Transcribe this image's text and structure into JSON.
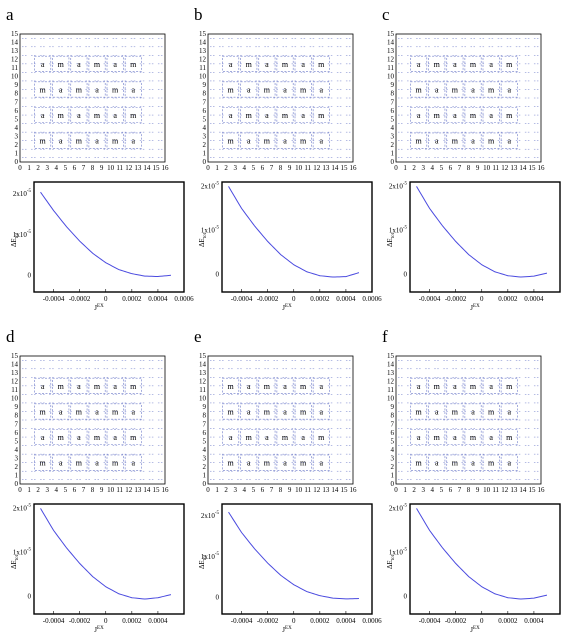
{
  "figure": {
    "panels": [
      {
        "letter": "a",
        "grid_rows": [
          [
            "a",
            "m",
            "a",
            "m",
            "a",
            "m"
          ],
          [
            "m",
            "a",
            "m",
            "a",
            "m",
            "a"
          ],
          [
            "a",
            "m",
            "a",
            "m",
            "a",
            "m"
          ],
          [
            "m",
            "a",
            "m",
            "a",
            "m",
            "a"
          ]
        ],
        "chart_xlabel": "J",
        "chart_xlabel_sup": "EX",
        "chart_ylabel": "ΔE",
        "chart_ylabel_sub": "tot"
      },
      {
        "letter": "b",
        "grid_rows": [
          [
            "a",
            "m",
            "a",
            "m",
            "a",
            "m"
          ],
          [
            "m",
            "a",
            "m",
            "a",
            "m",
            "a"
          ],
          [
            "a",
            "m",
            "a",
            "m",
            "a",
            "m"
          ],
          [
            "m",
            "a",
            "m",
            "a",
            "m",
            "a"
          ]
        ],
        "chart_xlabel": "J",
        "chart_xlabel_sup": "EX",
        "chart_ylabel": "ΔE",
        "chart_ylabel_sub": "tot"
      },
      {
        "letter": "c",
        "grid_rows": [
          [
            "a",
            "m",
            "a",
            "m",
            "a",
            "m"
          ],
          [
            "m",
            "a",
            "m",
            "a",
            "m",
            "a"
          ],
          [
            "a",
            "m",
            "a",
            "m",
            "a",
            "m"
          ],
          [
            "m",
            "a",
            "m",
            "a",
            "m",
            "a"
          ]
        ],
        "chart_xlabel": "J",
        "chart_xlabel_sup": "EX",
        "chart_ylabel": "ΔE",
        "chart_ylabel_sub": "tot"
      },
      {
        "letter": "d",
        "grid_rows": [
          [
            "a",
            "m",
            "a",
            "m",
            "a",
            "m"
          ],
          [
            "m",
            "a",
            "m",
            "a",
            "m",
            "a"
          ],
          [
            "a",
            "m",
            "a",
            "m",
            "a",
            "m"
          ],
          [
            "m",
            "a",
            "m",
            "a",
            "m",
            "a"
          ]
        ],
        "chart_xlabel": "J",
        "chart_xlabel_sup": "EX",
        "chart_ylabel": "ΔE",
        "chart_ylabel_sub": "tot"
      },
      {
        "letter": "e",
        "grid_rows": [
          [
            "m",
            "a",
            "m",
            "a",
            "m",
            "a"
          ],
          [
            "m",
            "a",
            "m",
            "a",
            "m",
            "a"
          ],
          [
            "a",
            "m",
            "a",
            "m",
            "a",
            "m"
          ],
          [
            "m",
            "a",
            "m",
            "a",
            "m",
            "a"
          ]
        ],
        "chart_xlabel": "J",
        "chart_xlabel_sup": "EX",
        "chart_ylabel": "ΔE",
        "chart_ylabel_sub": "tot"
      },
      {
        "letter": "f",
        "grid_rows": [
          [
            "a",
            "m",
            "a",
            "m",
            "a",
            "m"
          ],
          [
            "m",
            "a",
            "m",
            "a",
            "m",
            "a"
          ],
          [
            "a",
            "m",
            "a",
            "m",
            "a",
            "m"
          ],
          [
            "m",
            "a",
            "m",
            "a",
            "m",
            "a"
          ]
        ],
        "chart_xlabel": "J",
        "chart_xlabel_sup": "EX",
        "chart_ylabel": "ΔE",
        "chart_ylabel_sub": "tot"
      }
    ],
    "grid_axis_ticks": [
      "0",
      "1",
      "2",
      "3",
      "4",
      "5",
      "6",
      "7",
      "8",
      "9",
      "10",
      "11",
      "12",
      "13",
      "14",
      "15",
      "16"
    ],
    "grid_y_ticks": [
      "0",
      "1",
      "2",
      "3",
      "4",
      "5",
      "6",
      "7",
      "8",
      "9",
      "10",
      "11",
      "12",
      "13",
      "14",
      "15"
    ],
    "grid_color": "#6b78c8",
    "curve_color": "#4a4adf"
  },
  "chart_data": [
    {
      "panel": "a",
      "type": "line",
      "x": [
        -0.0005,
        -0.0004,
        -0.0003,
        -0.0002,
        -0.0001,
        0,
        0.0001,
        0.0002,
        0.0003,
        0.0004,
        0.0005
      ],
      "y": [
        2.05e-05,
        1.6e-05,
        1.2e-05,
        8.5e-06,
        5.5e-06,
        3.2e-06,
        1.5e-06,
        5e-07,
        -1e-07,
        -2e-07,
        1e-07
      ],
      "xlim": [
        -0.00055,
        0.0006
      ],
      "ylim": [
        -4e-06,
        2.3e-05
      ],
      "xticks": [
        "-0.0004",
        "-0.0002",
        "0",
        "0.0002",
        "0.0004",
        "0.0006"
      ],
      "yticks": [
        "0",
        "1x10",
        "2x10"
      ],
      "ytick_exp": "-5"
    },
    {
      "panel": "b",
      "type": "line",
      "x": [
        -0.0005,
        -0.0004,
        -0.0003,
        -0.0002,
        -0.0001,
        0,
        0.0001,
        0.0002,
        0.0003,
        0.0004,
        0.0005
      ],
      "y": [
        2e-05,
        1.5e-05,
        1.1e-05,
        7.5e-06,
        4.5e-06,
        2.2e-06,
        6e-07,
        -3e-07,
        -6e-07,
        -5e-07,
        4e-07
      ],
      "xlim": [
        -0.00055,
        0.0006
      ],
      "ylim": [
        -4e-06,
        2.1e-05
      ],
      "xticks": [
        "-0.0004",
        "-0.0002",
        "0",
        "0.0002",
        "0.0004",
        "0.0006"
      ],
      "yticks": [
        "0",
        "1x10",
        "2x10"
      ],
      "ytick_exp": "-5"
    },
    {
      "panel": "c",
      "type": "line",
      "x": [
        -0.0005,
        -0.0004,
        -0.0003,
        -0.0002,
        -0.0001,
        0,
        0.0001,
        0.0002,
        0.0003,
        0.0004,
        0.0005
      ],
      "y": [
        2e-05,
        1.5e-05,
        1.1e-05,
        7.5e-06,
        4.5e-06,
        2.2e-06,
        6e-07,
        -3e-07,
        -6e-07,
        -4e-07,
        3e-07
      ],
      "xlim": [
        -0.00055,
        0.0006
      ],
      "ylim": [
        -4e-06,
        2.1e-05
      ],
      "xticks": [
        "-0.0004",
        "-0.0002",
        "0",
        "0.0002",
        "0.0004"
      ],
      "yticks": [
        "0",
        "1x10",
        "2x10"
      ],
      "ytick_exp": "-5"
    },
    {
      "panel": "d",
      "type": "line",
      "x": [
        -0.0005,
        -0.0004,
        -0.0003,
        -0.0002,
        -0.0001,
        0,
        0.0001,
        0.0002,
        0.0003,
        0.0004,
        0.0005
      ],
      "y": [
        2e-05,
        1.5e-05,
        1.1e-05,
        7.5e-06,
        4.5e-06,
        2.2e-06,
        6e-07,
        -3e-07,
        -6e-07,
        -3e-07,
        4e-07
      ],
      "xlim": [
        -0.00055,
        0.0006
      ],
      "ylim": [
        -4e-06,
        2.1e-05
      ],
      "xticks": [
        "-0.0004",
        "-0.0002",
        "0",
        "0.0002",
        "0.0004"
      ],
      "yticks": [
        "0",
        "1x10",
        "2x10"
      ],
      "ytick_exp": "-5"
    },
    {
      "panel": "e",
      "type": "line",
      "x": [
        -0.0005,
        -0.0004,
        -0.0003,
        -0.0002,
        -0.0001,
        0,
        0.0001,
        0.0002,
        0.0003,
        0.0004,
        0.0005
      ],
      "y": [
        2.1e-05,
        1.6e-05,
        1.2e-05,
        8.5e-06,
        5.5e-06,
        3.2e-06,
        1.5e-06,
        5e-07,
        -1e-07,
        -3e-07,
        -2e-07
      ],
      "xlim": [
        -0.00055,
        0.0006
      ],
      "ylim": [
        -4e-06,
        2.3e-05
      ],
      "xticks": [
        "-0.0004",
        "-0.0002",
        "0",
        "0.0002",
        "0.0004",
        "0.0006"
      ],
      "yticks": [
        "0",
        "1x10",
        "2x10"
      ],
      "ytick_exp": "-5"
    },
    {
      "panel": "f",
      "type": "line",
      "x": [
        -0.0005,
        -0.0004,
        -0.0003,
        -0.0002,
        -0.0001,
        0,
        0.0001,
        0.0002,
        0.0003,
        0.0004,
        0.0005
      ],
      "y": [
        2e-05,
        1.5e-05,
        1.1e-05,
        7.5e-06,
        4.5e-06,
        2.2e-06,
        6e-07,
        -3e-07,
        -6e-07,
        -4e-07,
        3e-07
      ],
      "xlim": [
        -0.00055,
        0.0006
      ],
      "ylim": [
        -4e-06,
        2.1e-05
      ],
      "xticks": [
        "-0.0004",
        "-0.0002",
        "0",
        "0.0002",
        "0.0004"
      ],
      "yticks": [
        "0",
        "1x10",
        "2x10"
      ],
      "ytick_exp": "-5"
    }
  ]
}
